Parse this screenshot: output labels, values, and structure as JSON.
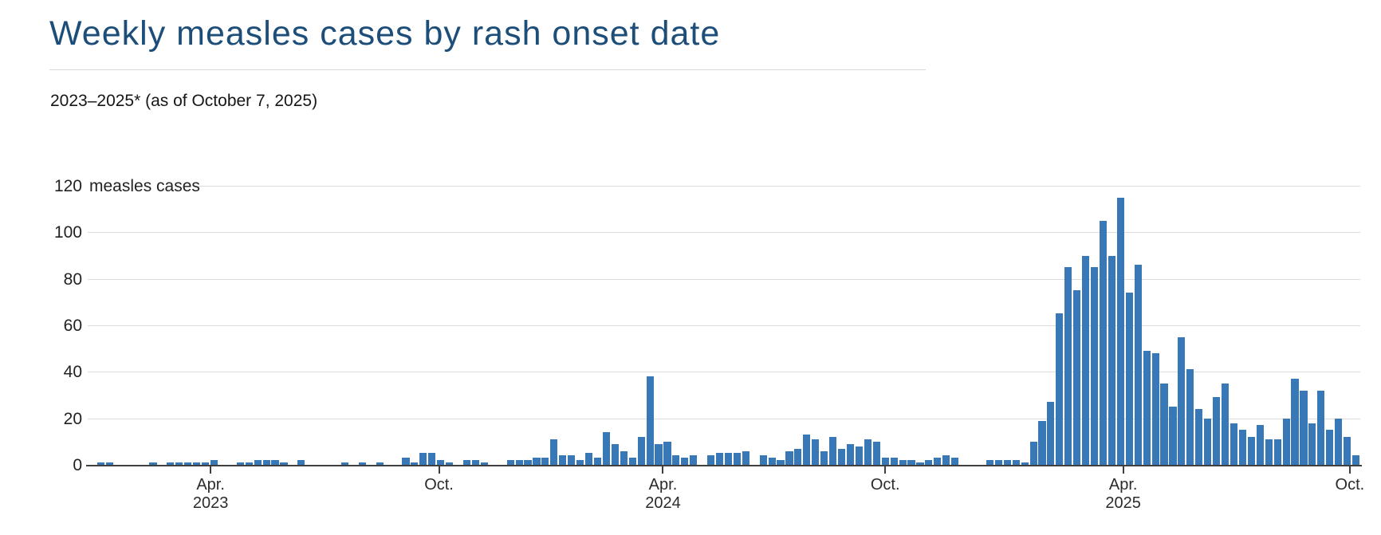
{
  "header": {
    "title": "Weekly measles cases by rash onset date",
    "subtitle": "2023–2025* (as of October 7, 2025)",
    "title_color": "#1c4e79"
  },
  "chart_data": {
    "type": "bar",
    "title": "Weekly measles cases by rash onset date",
    "subtitle": "2023–2025* (as of October 7, 2025)",
    "bar_color": "#3878b6",
    "gridlines": "on",
    "y_axis": {
      "min": 0,
      "max": 120,
      "ticks": [
        0,
        20,
        40,
        60,
        80,
        100,
        120
      ],
      "top_tick_unit_label": "measles cases"
    },
    "x_axis": {
      "description": "weekly bars, one per week",
      "ticks": [
        {
          "line1": "Apr.",
          "line2": "2023",
          "slot": 14.1
        },
        {
          "line1": "Oct.",
          "line2": "",
          "slot": 40.3
        },
        {
          "line1": "Apr.",
          "line2": "2024",
          "slot": 66.0
        },
        {
          "line1": "Oct.",
          "line2": "",
          "slot": 91.5
        },
        {
          "line1": "Apr.",
          "line2": "2025",
          "slot": 118.8
        },
        {
          "line1": "Oct.",
          "line2": "",
          "slot": 144.8
        }
      ]
    },
    "values": [
      0,
      1,
      1,
      0,
      0,
      0,
      0,
      1,
      0,
      1,
      1,
      1,
      1,
      1,
      2,
      0,
      0,
      1,
      1,
      2,
      2,
      2,
      1,
      0,
      2,
      0,
      0,
      0,
      0,
      1,
      0,
      1,
      0,
      1,
      0,
      0,
      3,
      1,
      5,
      5,
      2,
      1,
      0,
      2,
      2,
      1,
      0,
      0,
      2,
      2,
      2,
      3,
      3,
      11,
      4,
      4,
      2,
      5,
      3,
      14,
      9,
      6,
      3,
      12,
      38,
      9,
      10,
      4,
      3,
      4,
      0,
      4,
      5,
      5,
      5,
      6,
      0,
      4,
      3,
      2,
      6,
      7,
      13,
      11,
      6,
      12,
      7,
      9,
      8,
      11,
      10,
      3,
      3,
      2,
      2,
      1,
      2,
      3,
      4,
      3,
      0,
      0,
      0,
      2,
      2,
      2,
      2,
      1,
      10,
      19,
      27,
      65,
      85,
      75,
      90,
      85,
      105,
      90,
      115,
      74,
      86,
      49,
      48,
      35,
      25,
      55,
      41,
      24,
      20,
      29,
      35,
      18,
      15,
      12,
      17,
      11,
      11,
      20,
      37,
      32,
      18,
      32,
      15,
      20,
      12,
      4
    ]
  }
}
